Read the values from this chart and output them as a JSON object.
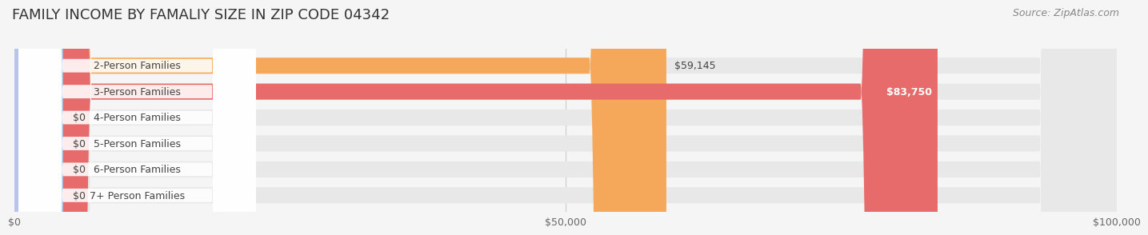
{
  "title": "FAMILY INCOME BY FAMALIY SIZE IN ZIP CODE 04342",
  "source": "Source: ZipAtlas.com",
  "categories": [
    "2-Person Families",
    "3-Person Families",
    "4-Person Families",
    "5-Person Families",
    "6-Person Families",
    "7+ Person Families"
  ],
  "values": [
    59145,
    83750,
    0,
    0,
    0,
    0
  ],
  "bar_colors": [
    "#f5a85a",
    "#e86b6b",
    "#a8bfe0",
    "#d4a8d4",
    "#6ec4bf",
    "#b8c4e8"
  ],
  "label_colors": [
    "#555555",
    "#ffffff",
    "#555555",
    "#555555",
    "#555555",
    "#555555"
  ],
  "value_labels": [
    "$59,145",
    "$83,750",
    "$0",
    "$0",
    "$0",
    "$0"
  ],
  "xlim": [
    0,
    100000
  ],
  "xticks": [
    0,
    50000,
    100000
  ],
  "xticklabels": [
    "$0",
    "$50,000",
    "$100,000"
  ],
  "background_color": "#f5f5f5",
  "bar_bg_color": "#e8e8e8",
  "title_fontsize": 13,
  "source_fontsize": 9,
  "label_fontsize": 9,
  "value_fontsize": 9,
  "tick_fontsize": 9,
  "bar_height": 0.62
}
